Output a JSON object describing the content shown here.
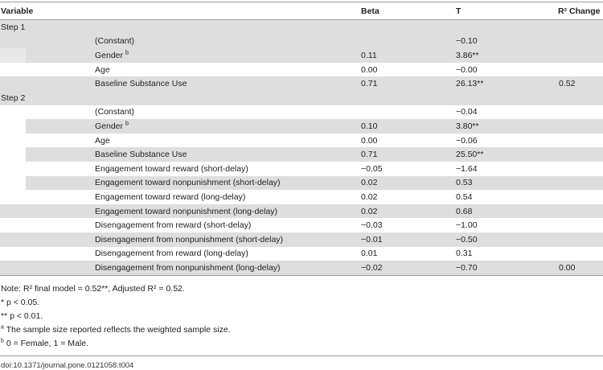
{
  "table": {
    "headers": {
      "variable": "Variable",
      "beta": "Beta",
      "t": "T",
      "r2": "R² Change"
    },
    "steps": [
      {
        "label": "Step 1",
        "rows": [
          {
            "variable": "(Constant)",
            "sup": "",
            "beta": "",
            "t": "−0.10",
            "r2": "",
            "shade": "gray-full"
          },
          {
            "variable": "Gender",
            "sup": "b",
            "beta": "0.11",
            "t": "3.86**",
            "r2": "",
            "shade": "gray-indent"
          },
          {
            "variable": "Age",
            "sup": "",
            "beta": "0.00",
            "t": "−0.00",
            "r2": "",
            "shade": "white"
          },
          {
            "variable": "Baseline Substance Use",
            "sup": "",
            "beta": "0.71",
            "t": "26.13**",
            "r2": "0.52",
            "shade": "gray-full"
          }
        ]
      },
      {
        "label": "Step 2",
        "rows": [
          {
            "variable": "(Constant)",
            "sup": "",
            "beta": "",
            "t": "−0.04",
            "r2": "",
            "shade": "white"
          },
          {
            "variable": "Gender",
            "sup": "b",
            "beta": "0.10",
            "t": "3.80**",
            "r2": "",
            "shade": "gray-indent"
          },
          {
            "variable": "Age",
            "sup": "",
            "beta": "0.00",
            "t": "−0.06",
            "r2": "",
            "shade": "white"
          },
          {
            "variable": "Baseline Substance Use",
            "sup": "",
            "beta": "0.71",
            "t": "25.50**",
            "r2": "",
            "shade": "gray-indent"
          },
          {
            "variable": "Engagement toward reward (short-delay)",
            "sup": "",
            "beta": "−0.05",
            "t": "−1.64",
            "r2": "",
            "shade": "white"
          },
          {
            "variable": "Engagement toward nonpunishment (short-delay)",
            "sup": "",
            "beta": "0.02",
            "t": "0.53",
            "r2": "",
            "shade": "gray-indent"
          },
          {
            "variable": "Engagement toward reward (long-delay)",
            "sup": "",
            "beta": "0.02",
            "t": "0.54",
            "r2": "",
            "shade": "white"
          },
          {
            "variable": "Engagement toward nonpunishment (long-delay)",
            "sup": "",
            "beta": "0.02",
            "t": "0.68",
            "r2": "",
            "shade": "gray-full"
          },
          {
            "variable": "Disengagement from reward (short-delay)",
            "sup": "",
            "beta": "−0.03",
            "t": "−1.00",
            "r2": "",
            "shade": "white"
          },
          {
            "variable": "Disengagement from nonpunishment (short-delay)",
            "sup": "",
            "beta": "−0.01",
            "t": "−0.50",
            "r2": "",
            "shade": "gray-full"
          },
          {
            "variable": "Disengagement from reward (long-delay)",
            "sup": "",
            "beta": "0.01",
            "t": "0.31",
            "r2": "",
            "shade": "white"
          },
          {
            "variable": "Disengagement from nonpunishment (long-delay)",
            "sup": "",
            "beta": "−0.02",
            "t": "−0.70",
            "r2": "0.00",
            "shade": "gray-full"
          }
        ]
      }
    ]
  },
  "notes": [
    {
      "sup": "",
      "text": "Note: R² final model = 0.52**, Adjusted R² = 0.52."
    },
    {
      "sup": "",
      "text": "* p < 0.05."
    },
    {
      "sup": "",
      "text": "** p < 0.01."
    },
    {
      "sup": "a",
      "text": " The sample size reported reflects the weighted sample size."
    },
    {
      "sup": "b",
      "text": " 0 = Female, 1 = Male."
    }
  ],
  "doi": "doi:10.1371/journal.pone.0121058.t004",
  "colors": {
    "shade": "#dedede",
    "rule": "#9a9a9a",
    "text": "#222222"
  }
}
